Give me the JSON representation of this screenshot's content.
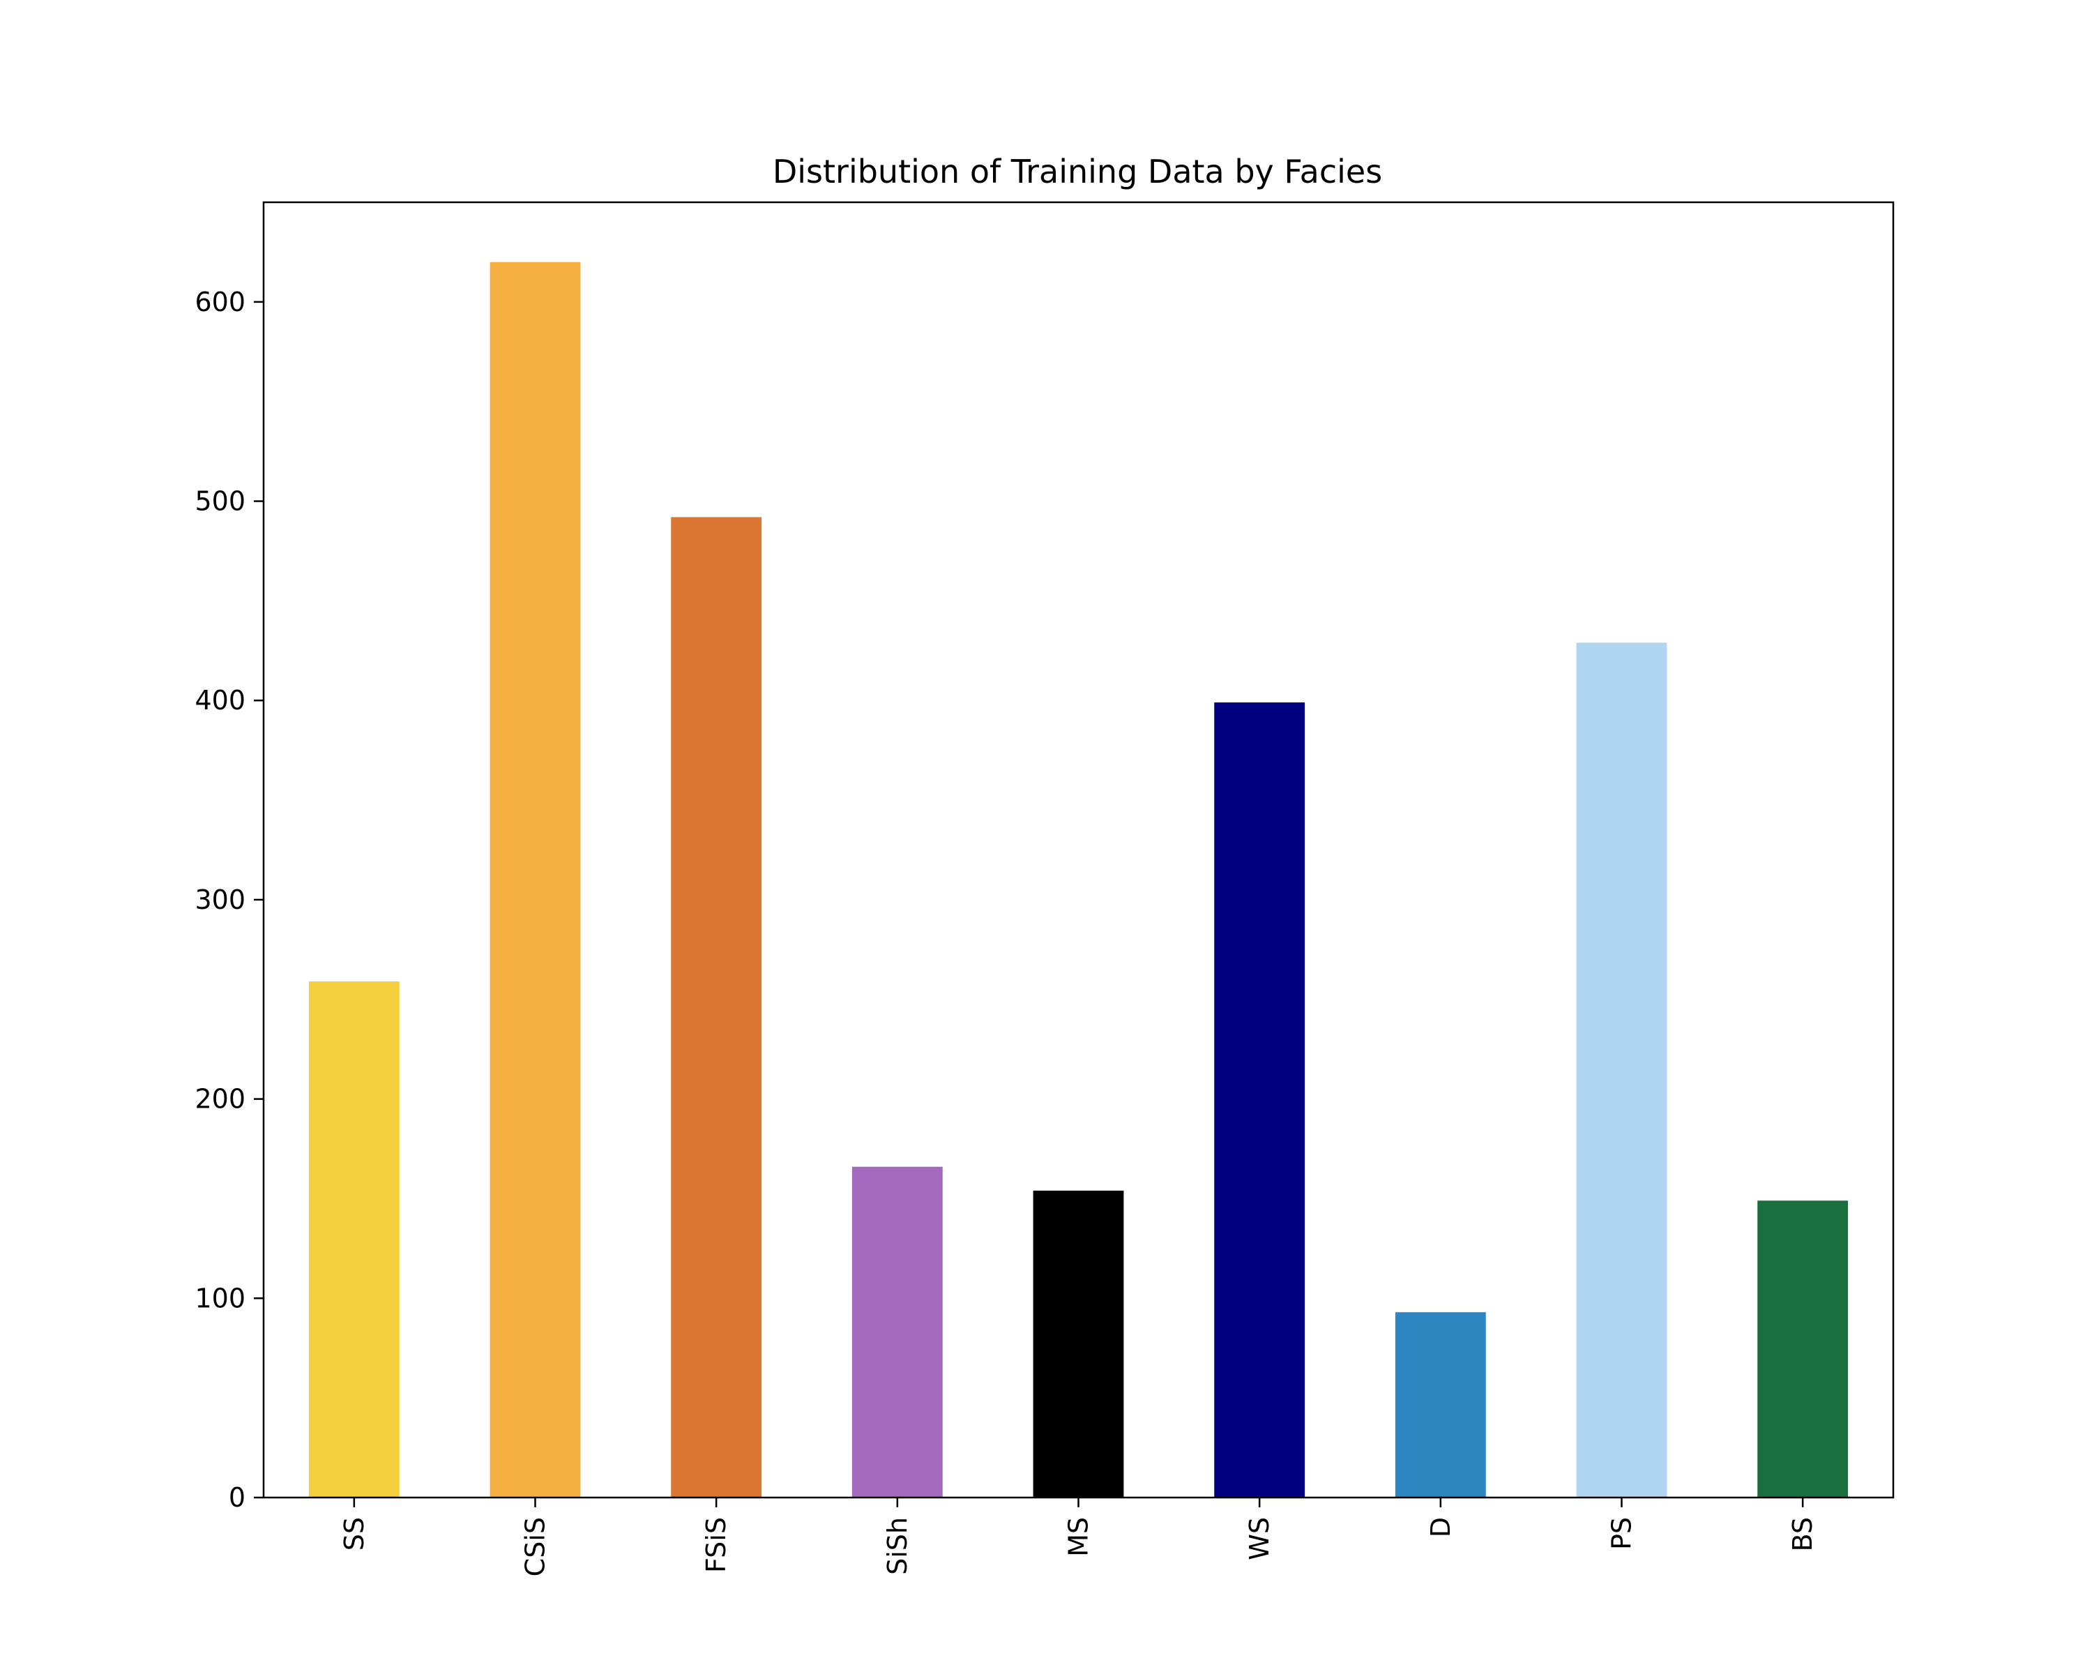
{
  "chart_data": {
    "type": "bar",
    "title": "Distribution of Training Data by Facies",
    "xlabel": "",
    "ylabel": "",
    "categories": [
      "SS",
      "CSiS",
      "FSiS",
      "SiSh",
      "MS",
      "WS",
      "D",
      "PS",
      "BS"
    ],
    "values": [
      259,
      620,
      492,
      166,
      154,
      399,
      93,
      429,
      149
    ],
    "colors": [
      "#F4D03F",
      "#F5B041",
      "#DC7633",
      "#A569BD",
      "#000000",
      "#000080",
      "#2E86C1",
      "#AED6F1",
      "#196F3D"
    ],
    "ylim": [
      0,
      650
    ],
    "yticks": [
      "0",
      "100",
      "200",
      "300",
      "400",
      "500",
      "600"
    ],
    "grid": false,
    "legend": "none",
    "x_tick_rotation": "vertical"
  }
}
